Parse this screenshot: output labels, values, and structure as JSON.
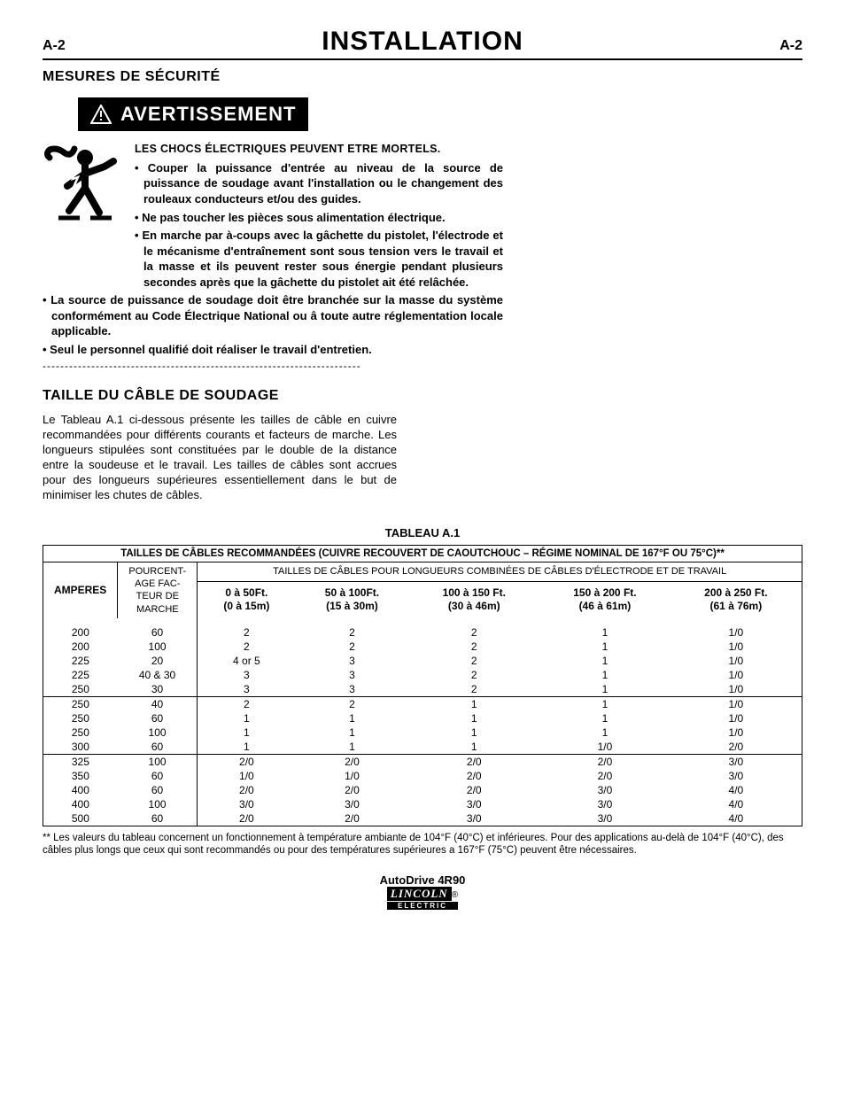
{
  "header": {
    "left": "A-2",
    "title": "INSTALLATION",
    "right": "A-2"
  },
  "section1": {
    "heading": "MESURES DE SÉCURITÉ"
  },
  "warning": {
    "label": "AVERTISSEMENT",
    "shock_title": "LES CHOCS ÉLECTRIQUES PEUVENT ETRE MORTELS.",
    "bullets_top": [
      "Couper la puissance d'entrée au niveau de la source de puissance de soudage avant l'installation ou le changement des rouleaux conducteurs et/ou des guides.",
      "Ne pas toucher les pièces sous alimentation électrique.",
      "En marche par à-coups avec la gâchette du pistolet, l'électrode et le mécanisme d'entraînement sont sous tension vers le travail et la masse et ils peuvent rester sous énergie pendant plusieurs secondes après que la gâchette du pistolet ait été relâchée."
    ],
    "bullets_below": [
      "La source de puissance de soudage doit être branchée sur la masse du système conformément au Code Électrique National ou â toute autre réglementation locale applicable.",
      "Seul le personnel qualifié doit réaliser le travail d'entretien."
    ]
  },
  "section2": {
    "heading": "TAILLE DU CÂBLE DE SOUDAGE",
    "para": "Le Tableau A.1 ci-dessous présente les tailles de câble en cuivre recommandées pour différents courants et facteurs de marche. Les longueurs stipulées sont constituées par le double de la distance entre la soudeuse et le travail. Les tailles de câbles sont accrues pour des longueurs supérieures essentiellement dans le but de minimiser les chutes de câbles."
  },
  "table": {
    "label": "TABLEAU A.1",
    "top_header": "TAILLES DE CÂBLES RECOMMANDÉES (CUIVRE RECOUVERT DE CAOUTCHOUC – RÉGIME NOMINAL DE 167°F OU 75°C)**",
    "span_header": "TAILLES DE CÂBLES POUR LONGUEURS COMBINÉES DE CÂBLES D'ÉLECTRODE ET DE TRAVAIL",
    "col_labels": {
      "amperes": "AMPERES",
      "duty": "POURCENT-AGE FAC-TEUR DE MARCHE",
      "c1a": "0 à 50Ft.",
      "c1b": "(0 à 15m)",
      "c2a": "50 à 100Ft.",
      "c2b": "(15 à 30m)",
      "c3a": "100 à 150 Ft.",
      "c3b": "(30 à 46m)",
      "c4a": "150 à 200 Ft.",
      "c4b": "(46 à 61m)",
      "c5a": "200 à 250 Ft.",
      "c5b": "(61 à 76m)"
    },
    "rows": [
      [
        "200",
        "60",
        "2",
        "2",
        "2",
        "1",
        "1/0"
      ],
      [
        "200",
        "100",
        "2",
        "2",
        "2",
        "1",
        "1/0"
      ],
      [
        "225",
        "20",
        "4 or 5",
        "3",
        "2",
        "1",
        "1/0"
      ],
      [
        "225",
        "40 & 30",
        "3",
        "3",
        "2",
        "1",
        "1/0"
      ],
      [
        "250",
        "30",
        "3",
        "3",
        "2",
        "1",
        "1/0"
      ],
      [
        "250",
        "40",
        "2",
        "2",
        "1",
        "1",
        "1/0"
      ],
      [
        "250",
        "60",
        "1",
        "1",
        "1",
        "1",
        "1/0"
      ],
      [
        "250",
        "100",
        "1",
        "1",
        "1",
        "1",
        "1/0"
      ],
      [
        "300",
        "60",
        "1",
        "1",
        "1",
        "1/0",
        "2/0"
      ],
      [
        "325",
        "100",
        "2/0",
        "2/0",
        "2/0",
        "2/0",
        "3/0"
      ],
      [
        "350",
        "60",
        "1/0",
        "1/0",
        "2/0",
        "2/0",
        "3/0"
      ],
      [
        "400",
        "60",
        "2/0",
        "2/0",
        "2/0",
        "3/0",
        "4/0"
      ],
      [
        "400",
        "100",
        "3/0",
        "3/0",
        "3/0",
        "3/0",
        "4/0"
      ],
      [
        "500",
        "60",
        "2/0",
        "2/0",
        "3/0",
        "3/0",
        "4/0"
      ]
    ],
    "separators_before": [
      5,
      9
    ],
    "footnote": "** Les valeurs du tableau concernent un fonctionnement à température ambiante de 104°F (40°C) et inférieures. Pour des applications au-delà de 104°F (40°C), des câbles plus longs que ceux qui sont recommandés ou pour des températures supérieures a 167°F (75°C) peuvent être nécessaires."
  },
  "footer": {
    "product": "AutoDrive 4R90",
    "brand_top": "LINCOLN",
    "brand_bottom": "ELECTRIC"
  }
}
